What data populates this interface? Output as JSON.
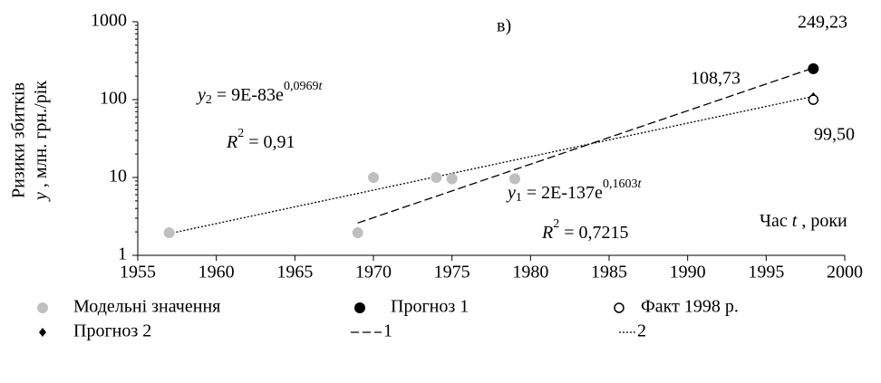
{
  "chart_data": {
    "type": "scatter",
    "title": "в)",
    "y_label": {
      "line1": "Ризики збитків",
      "var": "y",
      "rest": ", млн. грн./рік"
    },
    "x_label": {
      "text": "Час",
      "var": "t",
      "rest": ", роки"
    },
    "log_y": true,
    "xlim": [
      1955,
      2000
    ],
    "xticks": [
      1955,
      1960,
      1965,
      1970,
      1975,
      1980,
      1985,
      1990,
      1995,
      2000
    ],
    "ylim": [
      1,
      1000
    ],
    "yticks": [
      1,
      10,
      100,
      1000
    ],
    "series": [
      {
        "name": "Модельні значення",
        "marker": "circle",
        "color": "#bfbfbf",
        "x": [
          1957,
          1969,
          1970,
          1974,
          1975,
          1979
        ],
        "values": [
          1.95,
          1.95,
          10,
          10,
          9.6,
          9.6
        ]
      },
      {
        "name": "Прогноз 1",
        "marker": "circle",
        "color": "#000000",
        "x": [
          1998
        ],
        "values": [
          249.23
        ],
        "value_labels": [
          "249,23"
        ]
      },
      {
        "name": "Факт 1998 р.",
        "marker": "open-circle",
        "color": "#000000",
        "x": [
          1998
        ],
        "values": [
          99.5
        ],
        "value_labels": [
          "99,50"
        ]
      },
      {
        "name": "Прогноз 2",
        "marker": "diamond",
        "color": "#000000",
        "x": [
          1998
        ],
        "values": [
          108.73
        ],
        "value_labels": [
          "108,73"
        ]
      },
      {
        "name": "1",
        "marker": "dashed",
        "color": "#000000",
        "x": [
          1969,
          1998
        ],
        "values": [
          2.6,
          255
        ]
      },
      {
        "name": "2",
        "marker": "dotted",
        "color": "#000000",
        "x": [
          1957,
          1998
        ],
        "values": [
          1.9,
          110
        ]
      }
    ],
    "equations": [
      {
        "var": "y",
        "index": "2",
        "body": " = 9E-83e",
        "exponent": "0,0969",
        "exponent_var": "t"
      },
      {
        "var": "R",
        "exponent": "2",
        "body": " = 0,91"
      },
      {
        "var": "y",
        "index": "1",
        "body": " = 2E-137e",
        "exponent": "0,1603",
        "exponent_var": "t"
      },
      {
        "var": "R",
        "exponent": "2",
        "body": " = 0,7215"
      }
    ]
  }
}
